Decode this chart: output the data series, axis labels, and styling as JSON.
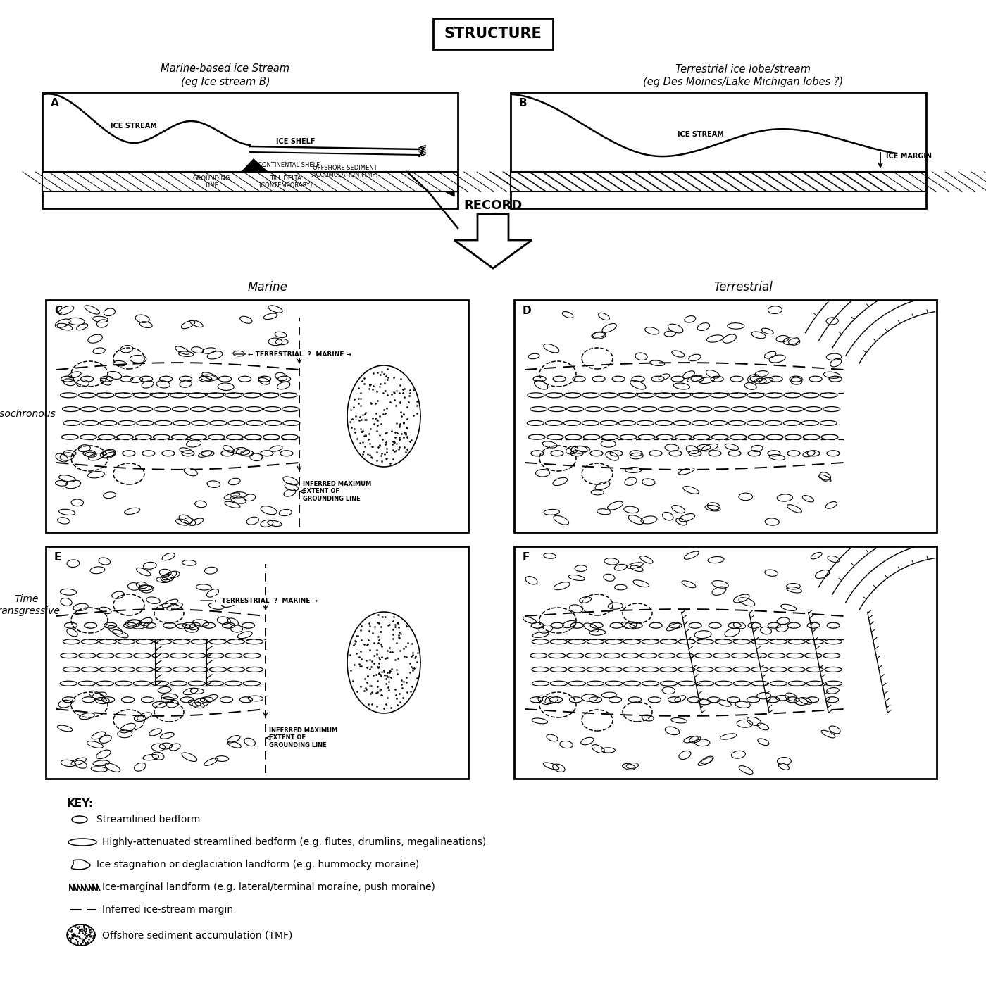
{
  "title": "STRUCTURE",
  "panel_A_title1": "Marine-based ice Stream",
  "panel_A_title2": "(eg Ice stream B)",
  "panel_B_title1": "Terrestrial ice lobe/stream",
  "panel_B_title2": "(eg Des Moines/Lake Michigan lobes ?)",
  "record_label": "RECORD",
  "marine_label": "Marine",
  "terrestrial_label": "Terrestrial",
  "isochronous_label": "Isochronous",
  "time_transgressive_label1": "Time",
  "time_transgressive_label2": "transgressive",
  "key_title": "KEY:",
  "key_items": [
    "Streamlined bedform",
    "Highly-attenuated streamlined bedform (e.g. flutes, drumlins, megalineations)",
    "Ice stagnation or deglaciation landform (e.g. hummocky moraine)",
    "Ice-marginal landform (e.g. lateral/terminal moraine, push moraine)",
    "Inferred ice-stream margin",
    "Offshore sediment accumulation (TMF)"
  ],
  "background_color": "#ffffff"
}
